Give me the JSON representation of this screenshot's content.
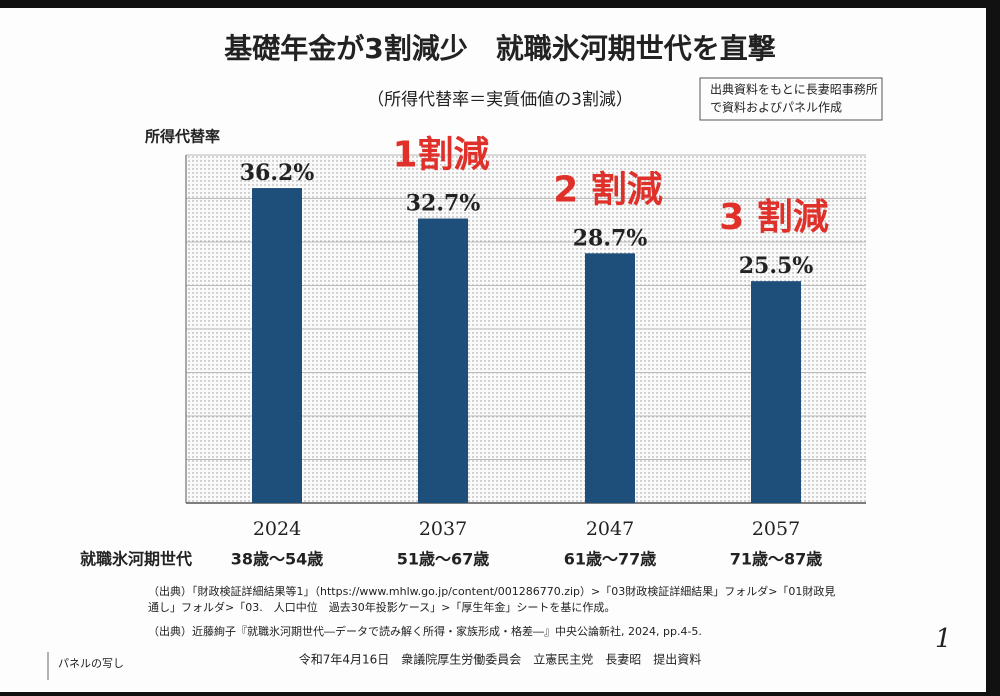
{
  "chart_data": {
    "type": "bar",
    "title": "基礎年金が3割減少　就職氷河期世代を直撃",
    "subtitle": "（所得代替率＝実質価値の3割減）",
    "source_box": [
      "出典資料をもとに長妻昭事務所",
      "で資料およびパネル作成"
    ],
    "y_label": "所得代替率",
    "categories": [
      "2024",
      "2037",
      "2047",
      "2057"
    ],
    "values": [
      36.2,
      32.7,
      28.7,
      25.5
    ],
    "value_labels": [
      "36.2%",
      "32.7%",
      "28.7%",
      "25.5%"
    ],
    "annotations": [
      null,
      "1割減",
      "2 割減",
      "3 割減"
    ],
    "row_label": "就職氷河期世代",
    "age_ranges": [
      "38歳～54歳",
      "51歳～67歳",
      "61歳～77歳",
      "71歳～87歳"
    ],
    "color": "#1e4f7b",
    "annotation_color": "#e0302a",
    "ylim": [
      0,
      40
    ],
    "yticks": [
      0,
      5,
      10,
      15,
      20,
      25,
      30,
      35,
      40
    ],
    "grid": true
  },
  "footnotes": [
    "（出典）「財政検証詳細結果等1」（https://www.mhlw.go.jp/content/001286770.zip）>「03財政検証詳細結果」フォルダ>「01財政見",
    "通し」フォルダ>「03.　人口中位　過去30年投影ケース」>「厚生年金」シートを基に作成。",
    "（出典）近藤絢子『就職氷河期世代―データで読み解く所得・家族形成・格差―』中央公論新社, 2024, pp.4-5."
  ],
  "footer": "令和7年4月16日　衆議院厚生労働委員会　立憲民主党　長妻昭　提出資料",
  "stamp": "パネルの写し",
  "page_number": "1"
}
